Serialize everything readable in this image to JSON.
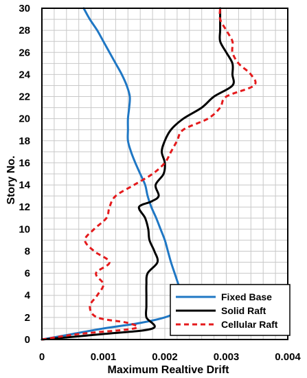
{
  "chart_data": {
    "type": "line",
    "xlabel": "Maximum Realtive Drift",
    "ylabel": "Story No.",
    "xlim": [
      0,
      0.004
    ],
    "ylim": [
      0,
      30
    ],
    "x_ticks": [
      "0",
      "0.001",
      "0.002",
      "0.003",
      "0.004"
    ],
    "y_ticks": [
      "0",
      "2",
      "4",
      "6",
      "8",
      "10",
      "12",
      "14",
      "16",
      "18",
      "20",
      "22",
      "24",
      "26",
      "28",
      "30"
    ],
    "grid": true,
    "legend_position": "bottom-right",
    "series": [
      {
        "name": "Fixed Base",
        "color": "#1f77c4",
        "dash": "solid",
        "points": [
          [
            0,
            0
          ],
          [
            0.0005,
            0.5
          ],
          [
            0.001,
            1
          ],
          [
            0.0016,
            1.5
          ],
          [
            0.002,
            2
          ],
          [
            0.0022,
            2.5
          ],
          [
            0.0023,
            3
          ],
          [
            0.00228,
            4
          ],
          [
            0.00222,
            5
          ],
          [
            0.00216,
            6
          ],
          [
            0.0021,
            7
          ],
          [
            0.00205,
            8
          ],
          [
            0.002,
            9
          ],
          [
            0.00193,
            10
          ],
          [
            0.00186,
            11
          ],
          [
            0.00178,
            12
          ],
          [
            0.00172,
            13
          ],
          [
            0.00168,
            14
          ],
          [
            0.0016,
            15
          ],
          [
            0.00152,
            16
          ],
          [
            0.00145,
            17
          ],
          [
            0.0014,
            18
          ],
          [
            0.0014,
            19
          ],
          [
            0.0014,
            20
          ],
          [
            0.00142,
            21
          ],
          [
            0.00143,
            22
          ],
          [
            0.00138,
            23
          ],
          [
            0.0013,
            24
          ],
          [
            0.0012,
            25
          ],
          [
            0.0011,
            26
          ],
          [
            0.001,
            27
          ],
          [
            0.0009,
            28
          ],
          [
            0.00078,
            29
          ],
          [
            0.00068,
            30
          ]
        ]
      },
      {
        "name": "Solid Raft",
        "color": "#000000",
        "dash": "solid",
        "points": [
          [
            0,
            0
          ],
          [
            0.001,
            0.5
          ],
          [
            0.0018,
            1
          ],
          [
            0.0017,
            2
          ],
          [
            0.0017,
            3
          ],
          [
            0.0017,
            4
          ],
          [
            0.0017,
            5
          ],
          [
            0.00172,
            6
          ],
          [
            0.00188,
            7
          ],
          [
            0.00183,
            8
          ],
          [
            0.00175,
            9
          ],
          [
            0.00173,
            10
          ],
          [
            0.00168,
            11
          ],
          [
            0.00158,
            12
          ],
          [
            0.00178,
            12.5
          ],
          [
            0.0019,
            13
          ],
          [
            0.00185,
            14
          ],
          [
            0.00198,
            15
          ],
          [
            0.002,
            16
          ],
          [
            0.00195,
            17
          ],
          [
            0.002,
            18
          ],
          [
            0.0021,
            19
          ],
          [
            0.0023,
            20
          ],
          [
            0.0026,
            21
          ],
          [
            0.0028,
            22
          ],
          [
            0.0031,
            23
          ],
          [
            0.0031,
            24
          ],
          [
            0.0031,
            25
          ],
          [
            0.003,
            26
          ],
          [
            0.0029,
            27
          ],
          [
            0.0029,
            28
          ],
          [
            0.0029,
            29
          ],
          [
            0.0029,
            30
          ]
        ]
      },
      {
        "name": "Cellular Raft",
        "color": "#e41a1c",
        "dash": "dashed",
        "points": [
          [
            0,
            0
          ],
          [
            0.0006,
            0.5
          ],
          [
            0.0015,
            1
          ],
          [
            0.0014,
            1.5
          ],
          [
            0.0009,
            2
          ],
          [
            0.00078,
            3
          ],
          [
            0.0009,
            4
          ],
          [
            0.001,
            5
          ],
          [
            0.00088,
            6
          ],
          [
            0.0011,
            7
          ],
          [
            0.00085,
            8
          ],
          [
            0.0007,
            9
          ],
          [
            0.00085,
            10
          ],
          [
            0.00105,
            11
          ],
          [
            0.0011,
            12
          ],
          [
            0.0012,
            13
          ],
          [
            0.0015,
            14
          ],
          [
            0.0018,
            15
          ],
          [
            0.002,
            16
          ],
          [
            0.0021,
            17
          ],
          [
            0.0022,
            18
          ],
          [
            0.0023,
            19
          ],
          [
            0.0027,
            20
          ],
          [
            0.0029,
            21
          ],
          [
            0.003,
            22
          ],
          [
            0.00345,
            23
          ],
          [
            0.0034,
            24
          ],
          [
            0.0032,
            25
          ],
          [
            0.0031,
            26
          ],
          [
            0.0031,
            27
          ],
          [
            0.003,
            28
          ],
          [
            0.0029,
            29
          ],
          [
            0.0029,
            30
          ]
        ]
      }
    ]
  }
}
